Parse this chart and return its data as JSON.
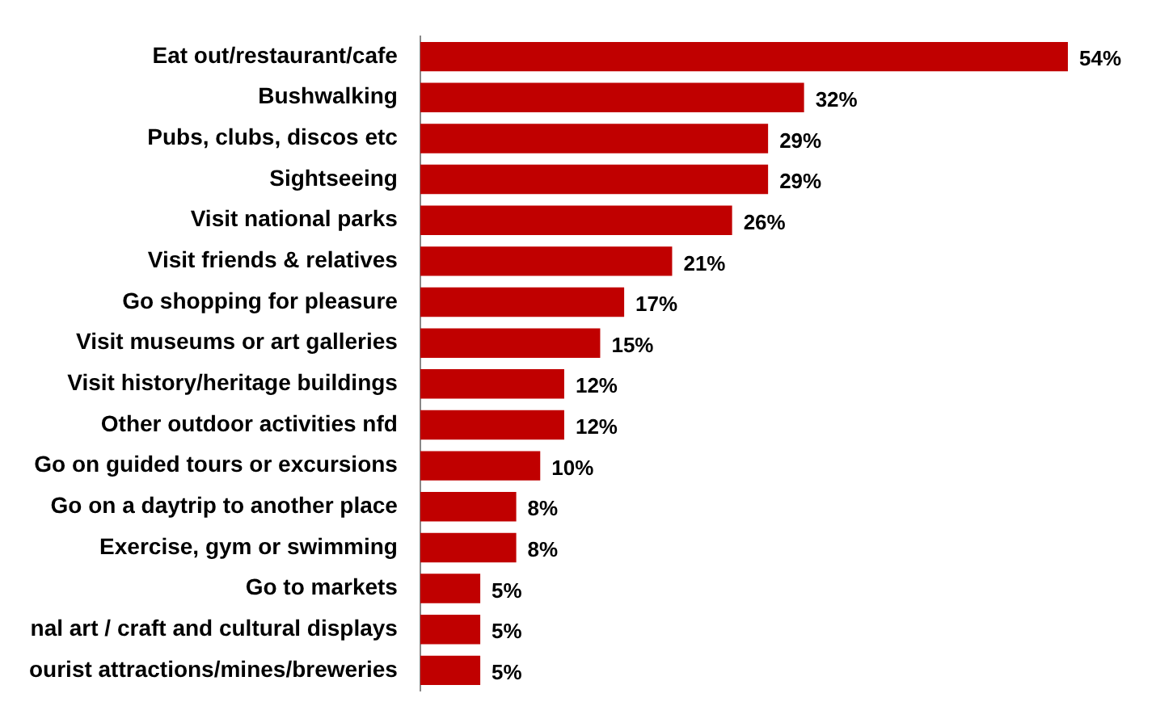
{
  "chart_data": {
    "type": "bar",
    "orientation": "horizontal",
    "categories": [
      "Eat out/restaurant/cafe",
      "Bushwalking",
      "Pubs, clubs, discos etc",
      "Sightseeing",
      "Visit national parks",
      "Visit friends & relatives",
      "Go shopping for pleasure",
      "Visit museums or art galleries",
      "Visit history/heritage buildings",
      "Other outdoor activities nfd",
      "Go on guided tours or excursions",
      "Go on a daytrip to another place",
      "Exercise, gym or swimming",
      "Go to markets",
      "nal art / craft and cultural displays",
      "ourist attractions/mines/breweries"
    ],
    "values": [
      54,
      32,
      29,
      29,
      26,
      21,
      17,
      15,
      12,
      12,
      10,
      8,
      8,
      5,
      5,
      5
    ],
    "value_labels": [
      "54%",
      "32%",
      "29%",
      "29%",
      "26%",
      "21%",
      "17%",
      "15%",
      "12%",
      "12%",
      "10%",
      "8%",
      "8%",
      "5%",
      "5%",
      "5%"
    ],
    "color": "#c00000",
    "legend": false
  }
}
